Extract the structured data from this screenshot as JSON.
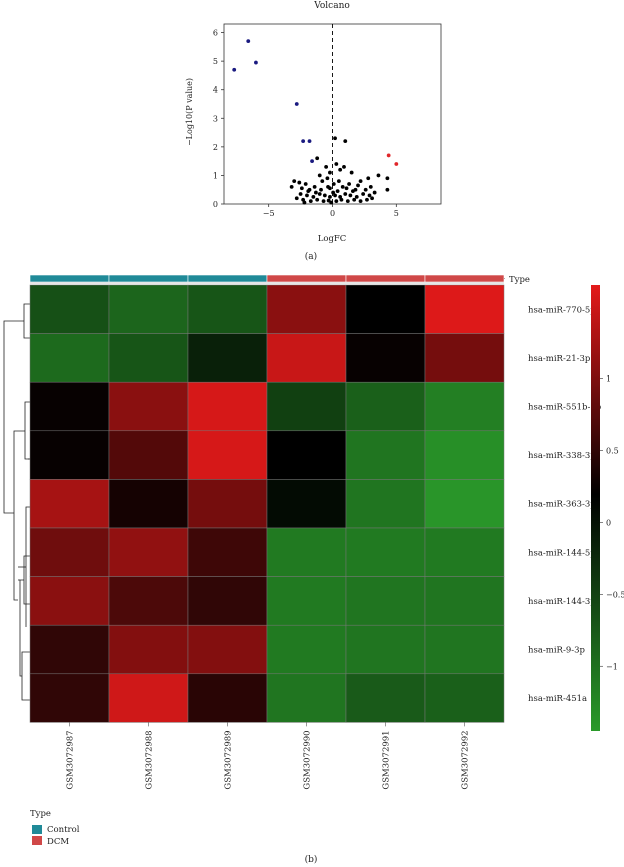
{
  "panel_a": {
    "caption": "(a)",
    "chart_data": {
      "type": "scatter",
      "title": "Volcano",
      "xlabel": "LogFC",
      "ylabel": "−Log10(P value)",
      "xlim": [
        -8.5,
        8.5
      ],
      "ylim": [
        0,
        6.3
      ],
      "x_ticks": [
        -5,
        0,
        5
      ],
      "x_tick_labels": [
        "−5",
        "0",
        "5"
      ],
      "y_ticks": [
        0,
        1,
        2,
        3,
        4,
        5,
        6
      ],
      "y_tick_labels": [
        "0",
        "1",
        "2",
        "3",
        "4",
        "5",
        "6"
      ],
      "cutoff_x": 0,
      "colors": {
        "down": "#1a1a80",
        "up": "#e0262a",
        "ns": "#000000"
      },
      "series": [
        {
          "group": "down",
          "points": [
            [
              -6.6,
              5.7
            ],
            [
              -6.0,
              4.95
            ],
            [
              -7.7,
              4.7
            ],
            [
              -2.8,
              3.5
            ],
            [
              -2.3,
              2.2
            ],
            [
              -1.8,
              2.2
            ],
            [
              -1.6,
              1.5
            ]
          ]
        },
        {
          "group": "up",
          "points": [
            [
              4.4,
              1.7
            ],
            [
              5.0,
              1.4
            ]
          ]
        },
        {
          "group": "ns",
          "points": [
            [
              0.2,
              2.3
            ],
            [
              1.0,
              2.2
            ],
            [
              -1.2,
              1.6
            ],
            [
              0.3,
              1.4
            ],
            [
              -0.5,
              1.3
            ],
            [
              0.6,
              1.2
            ],
            [
              -0.2,
              1.1
            ],
            [
              0.9,
              1.3
            ],
            [
              1.5,
              1.1
            ],
            [
              -1.0,
              1.0
            ],
            [
              4.3,
              0.9
            ],
            [
              3.6,
              1.0
            ],
            [
              2.8,
              0.9
            ],
            [
              -3.0,
              0.8
            ],
            [
              -2.6,
              0.75
            ],
            [
              -2.1,
              0.7
            ],
            [
              2.2,
              0.8
            ],
            [
              3.0,
              0.6
            ],
            [
              4.3,
              0.5
            ],
            [
              -3.2,
              0.6
            ],
            [
              -0.4,
              0.9
            ],
            [
              0.5,
              0.8
            ],
            [
              -1.4,
              0.6
            ],
            [
              1.3,
              0.7
            ],
            [
              1.8,
              0.5
            ],
            [
              -1.8,
              0.5
            ],
            [
              0.1,
              0.7
            ],
            [
              -0.8,
              0.8
            ],
            [
              0.8,
              0.6
            ],
            [
              -0.2,
              0.55
            ],
            [
              -2.5,
              0.35
            ],
            [
              -2.0,
              0.3
            ],
            [
              -1.5,
              0.25
            ],
            [
              -1.0,
              0.35
            ],
            [
              -0.6,
              0.3
            ],
            [
              -0.2,
              0.25
            ],
            [
              0.2,
              0.3
            ],
            [
              0.6,
              0.25
            ],
            [
              1.0,
              0.35
            ],
            [
              1.4,
              0.3
            ],
            [
              1.9,
              0.25
            ],
            [
              2.4,
              0.35
            ],
            [
              2.9,
              0.3
            ],
            [
              3.3,
              0.4
            ],
            [
              -2.8,
              0.2
            ],
            [
              -2.3,
              0.15
            ],
            [
              -1.7,
              0.1
            ],
            [
              -1.2,
              0.15
            ],
            [
              -0.7,
              0.1
            ],
            [
              -0.3,
              0.12
            ],
            [
              0.3,
              0.1
            ],
            [
              0.7,
              0.15
            ],
            [
              1.2,
              0.1
            ],
            [
              1.7,
              0.15
            ],
            [
              2.2,
              0.1
            ],
            [
              2.7,
              0.15
            ],
            [
              -1.9,
              0.45
            ],
            [
              -0.9,
              0.5
            ],
            [
              0.4,
              0.45
            ],
            [
              1.6,
              0.45
            ],
            [
              2.6,
              0.5
            ],
            [
              -2.4,
              0.55
            ],
            [
              -0.1,
              0.05
            ],
            [
              0.05,
              0.4
            ],
            [
              -0.35,
              0.6
            ],
            [
              1.1,
              0.55
            ],
            [
              -1.3,
              0.4
            ],
            [
              2.0,
              0.65
            ],
            [
              -2.2,
              0.05
            ],
            [
              3.1,
              0.2
            ]
          ]
        }
      ]
    }
  },
  "panel_b": {
    "caption": "(b)",
    "chart_data": {
      "type": "heatmap",
      "columns": [
        "GSM3072987",
        "GSM3072988",
        "GSM3072989",
        "GSM3072990",
        "GSM3072991",
        "GSM3072992"
      ],
      "column_type": [
        "Control",
        "Control",
        "Control",
        "DCM",
        "DCM",
        "DCM"
      ],
      "rows": [
        "hsa-miR-770-5p",
        "hsa-miR-21-3p",
        "hsa-miR-551b-3p",
        "hsa-miR-338-3p",
        "hsa-miR-363-3p",
        "hsa-miR-144-5p",
        "hsa-miR-144-3p",
        "hsa-miR-9-3p",
        "hsa-miR-451a"
      ],
      "values": [
        [
          -0.75,
          -0.95,
          -0.8,
          1.0,
          0.0,
          1.6
        ],
        [
          -1.0,
          -0.8,
          -0.3,
          1.45,
          0.05,
          0.85
        ],
        [
          0.05,
          1.0,
          1.55,
          -0.6,
          -0.9,
          -1.2
        ],
        [
          0.05,
          0.6,
          1.55,
          0.0,
          -1.1,
          -1.35
        ],
        [
          1.2,
          0.15,
          0.85,
          -0.1,
          -1.1,
          -1.4
        ],
        [
          0.8,
          1.05,
          0.45,
          -1.15,
          -1.15,
          -1.15
        ],
        [
          1.0,
          0.55,
          0.35,
          -1.15,
          -1.1,
          -1.1
        ],
        [
          0.35,
          0.95,
          0.95,
          -1.15,
          -1.1,
          -1.1
        ],
        [
          0.35,
          1.5,
          0.3,
          -1.1,
          -0.85,
          -0.9
        ]
      ],
      "color_scale": {
        "low": "#2a9a2a",
        "mid": "#000000",
        "high": "#e41a1a",
        "min": -1.45,
        "max": 1.65
      },
      "colorbar_ticks": [
        1,
        0.5,
        0,
        -0.5,
        -1
      ],
      "colorbar_tick_labels": [
        "1",
        "0.5",
        "0",
        "−0.5",
        "−1"
      ],
      "type_bar_label": "Type",
      "legend": {
        "title": "Type",
        "items": [
          {
            "label": "Control",
            "color": "#208a98"
          },
          {
            "label": "DCM",
            "color": "#d04848"
          }
        ]
      }
    }
  }
}
